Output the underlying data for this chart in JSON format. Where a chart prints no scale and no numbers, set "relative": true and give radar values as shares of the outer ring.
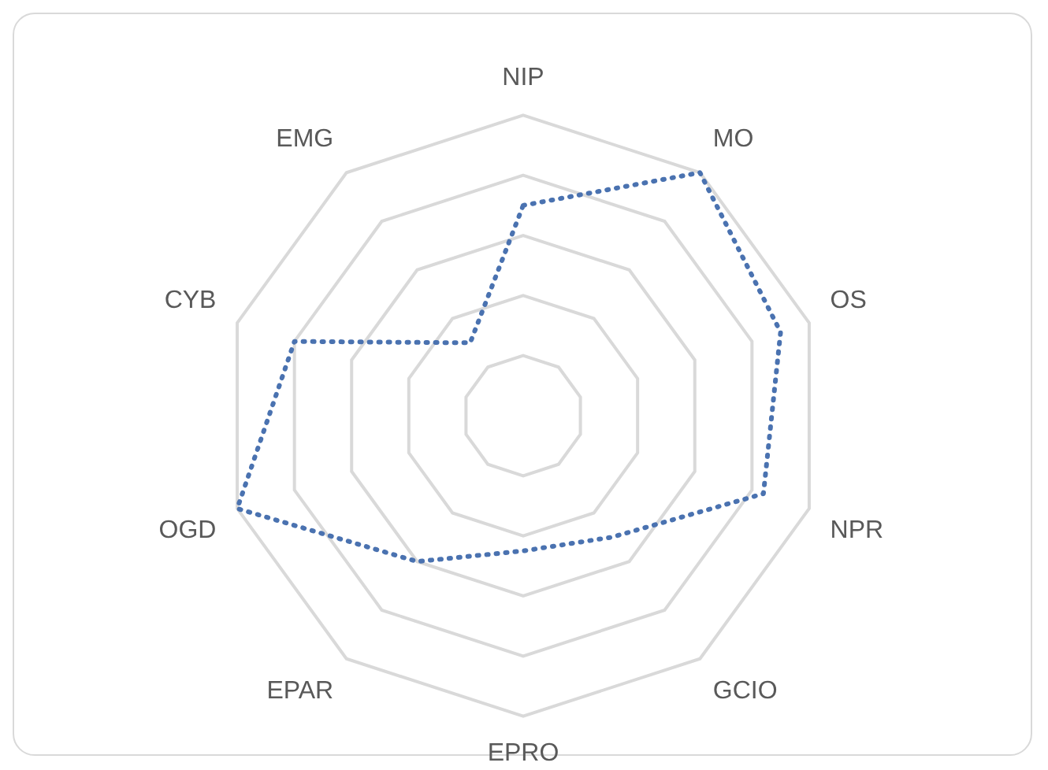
{
  "chart_data": {
    "type": "radar",
    "relative": true,
    "categories": [
      "NIP",
      "MO",
      "OS",
      "NPR",
      "GCIO",
      "EPRO",
      "EPAR",
      "OGD",
      "CYB",
      "EMG"
    ],
    "series": [
      {
        "color": "#4a72b0",
        "values": [
          0.7,
          1.0,
          0.9,
          0.84,
          0.5,
          0.45,
          0.6,
          1.0,
          0.8,
          0.3
        ]
      }
    ],
    "line_style": "dotted",
    "marker": "none",
    "legend": false
  }
}
